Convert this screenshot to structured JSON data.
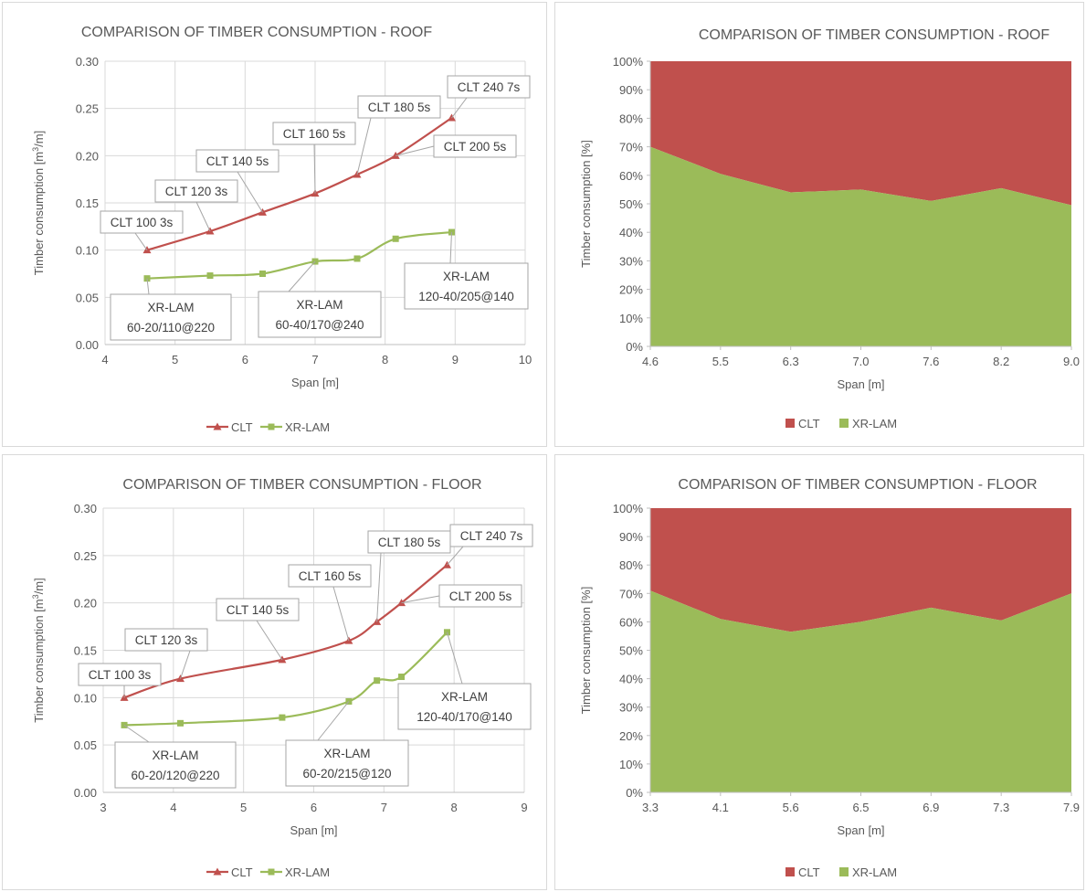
{
  "chart_data": [
    {
      "type": "line",
      "title": "COMPARISON OF TIMBER CONSUMPTION - ROOF",
      "xlabel": "Span [m]",
      "ylabel_main": "Timber consumption [m",
      "ylabel_sup": "3",
      "ylabel_end": "/m]",
      "xlim": [
        4,
        10
      ],
      "ylim": [
        0,
        0.3
      ],
      "xticks": [
        "4",
        "5",
        "6",
        "7",
        "8",
        "9",
        "10"
      ],
      "yticks": [
        "0.00",
        "0.05",
        "0.10",
        "0.15",
        "0.20",
        "0.25",
        "0.30"
      ],
      "legend_position": "bottom",
      "series": [
        {
          "name": "CLT",
          "color": "#c0504d",
          "marker": "triangle",
          "x": [
            4.6,
            5.5,
            6.25,
            7.0,
            7.6,
            8.15,
            8.95
          ],
          "y": [
            0.1,
            0.12,
            0.14,
            0.16,
            0.18,
            0.2,
            0.24
          ]
        },
        {
          "name": "XR-LAM",
          "color": "#9bbb59",
          "marker": "square",
          "x": [
            4.6,
            5.5,
            6.25,
            7.0,
            7.6,
            8.15,
            8.95
          ],
          "y": [
            0.07,
            0.073,
            0.075,
            0.088,
            0.091,
            0.112,
            0.119
          ]
        }
      ],
      "annotations": [
        {
          "lines": [
            "CLT 100 3s"
          ]
        },
        {
          "lines": [
            "CLT 120 3s"
          ]
        },
        {
          "lines": [
            "CLT 140 5s"
          ]
        },
        {
          "lines": [
            "CLT 160 5s"
          ]
        },
        {
          "lines": [
            "CLT 180 5s"
          ]
        },
        {
          "lines": [
            "CLT 200 5s"
          ]
        },
        {
          "lines": [
            "CLT 240 7s"
          ]
        },
        {
          "lines": [
            "XR-LAM",
            "60-20/110@220"
          ]
        },
        {
          "lines": [
            "XR-LAM",
            "60-40/170@240"
          ]
        },
        {
          "lines": [
            "XR-LAM",
            "120-40/205@140"
          ]
        }
      ]
    },
    {
      "type": "area",
      "stacked": "percent",
      "title": "COMPARISON OF TIMBER CONSUMPTION - ROOF",
      "xlabel": "Span [m]",
      "ylabel": "Timber consumption [%]",
      "categories": [
        "4.6",
        "5.5",
        "6.3",
        "7.0",
        "7.6",
        "8.2",
        "9.0"
      ],
      "ylim": [
        0,
        100
      ],
      "yticks": [
        "0%",
        "10%",
        "20%",
        "30%",
        "40%",
        "50%",
        "60%",
        "70%",
        "80%",
        "90%",
        "100%"
      ],
      "legend_position": "bottom",
      "series": [
        {
          "name": "CLT",
          "color": "#c0504d",
          "values": [
            30,
            39.5,
            46,
            45,
            49,
            44.5,
            50.5
          ]
        },
        {
          "name": "XR-LAM",
          "color": "#9bbb59",
          "values": [
            70,
            60.5,
            54,
            55,
            51,
            55.5,
            49.5
          ]
        }
      ]
    },
    {
      "type": "line",
      "title": "COMPARISON OF TIMBER CONSUMPTION - FLOOR",
      "xlabel": "Span [m]",
      "ylabel_main": "Timber consumption [m",
      "ylabel_sup": "3",
      "ylabel_end": "/m]",
      "xlim": [
        3,
        9
      ],
      "ylim": [
        0,
        0.3
      ],
      "xticks": [
        "3",
        "4",
        "5",
        "6",
        "7",
        "8",
        "9"
      ],
      "yticks": [
        "0.00",
        "0.05",
        "0.10",
        "0.15",
        "0.20",
        "0.25",
        "0.30"
      ],
      "legend_position": "bottom",
      "series": [
        {
          "name": "CLT",
          "color": "#c0504d",
          "marker": "triangle",
          "x": [
            3.3,
            4.1,
            5.55,
            6.5,
            6.9,
            7.25,
            7.9
          ],
          "y": [
            0.1,
            0.12,
            0.14,
            0.16,
            0.18,
            0.2,
            0.24
          ]
        },
        {
          "name": "XR-LAM",
          "color": "#9bbb59",
          "marker": "square",
          "x": [
            3.3,
            4.1,
            5.55,
            6.5,
            6.9,
            7.25,
            7.9
          ],
          "y": [
            0.071,
            0.073,
            0.079,
            0.096,
            0.118,
            0.122,
            0.169
          ]
        }
      ],
      "annotations": [
        {
          "lines": [
            "CLT 100 3s"
          ]
        },
        {
          "lines": [
            "CLT 120 3s"
          ]
        },
        {
          "lines": [
            "CLT 140 5s"
          ]
        },
        {
          "lines": [
            "CLT 160 5s"
          ]
        },
        {
          "lines": [
            "CLT 180 5s"
          ]
        },
        {
          "lines": [
            "CLT 200 5s"
          ]
        },
        {
          "lines": [
            "CLT 240 7s"
          ]
        },
        {
          "lines": [
            "XR-LAM",
            "60-20/120@220"
          ]
        },
        {
          "lines": [
            "XR-LAM",
            "60-20/215@120"
          ]
        },
        {
          "lines": [
            "XR-LAM",
            "120-40/170@140"
          ]
        }
      ]
    },
    {
      "type": "area",
      "stacked": "percent",
      "title": "COMPARISON OF TIMBER CONSUMPTION - FLOOR",
      "xlabel": "Span [m]",
      "ylabel": "Timber consumption [%]",
      "categories": [
        "3.3",
        "4.1",
        "5.6",
        "6.5",
        "6.9",
        "7.3",
        "7.9"
      ],
      "ylim": [
        0,
        100
      ],
      "yticks": [
        "0%",
        "10%",
        "20%",
        "30%",
        "40%",
        "50%",
        "60%",
        "70%",
        "80%",
        "90%",
        "100%"
      ],
      "legend_position": "bottom",
      "series": [
        {
          "name": "CLT",
          "color": "#c0504d",
          "values": [
            29,
            39,
            43.5,
            40,
            35,
            39.5,
            30
          ]
        },
        {
          "name": "XR-LAM",
          "color": "#9bbb59",
          "values": [
            71,
            61,
            56.5,
            60,
            65,
            60.5,
            70
          ]
        }
      ]
    }
  ]
}
